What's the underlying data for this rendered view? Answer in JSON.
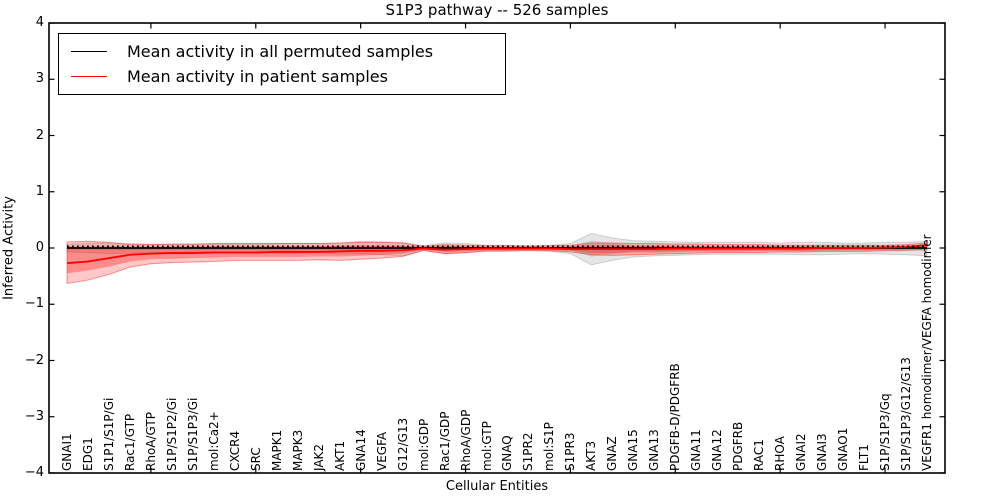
{
  "title": "S1P3 pathway -- 526 samples",
  "xlabel": "Cellular Entities",
  "ylabel": "Inferred Activity",
  "legend": [
    {
      "label": "Mean activity in all permuted samples",
      "color": "#000000"
    },
    {
      "label": "Mean activity in patient samples",
      "color": "#ff0000"
    }
  ],
  "colors": {
    "patient_line": "#ff0000",
    "permuted_line": "#000000",
    "patient_band_outer": "rgba(255,0,0,0.22)",
    "patient_band_inner": "rgba(255,0,0,0.30)",
    "permuted_band_outer": "rgba(110,110,110,0.18)",
    "permuted_band_inner": "rgba(110,110,110,0.22)"
  },
  "chart_data": {
    "type": "line",
    "title": "S1P3 pathway -- 526 samples",
    "xlabel": "Cellular Entities",
    "ylabel": "Inferred Activity",
    "ylim": [
      -4,
      4
    ],
    "yticks": [
      "−4",
      "−3",
      "−2",
      "−1",
      "0",
      "1",
      "2",
      "3",
      "4"
    ],
    "ytick_values": [
      -4,
      -3,
      -2,
      -1,
      0,
      1,
      2,
      3,
      4
    ],
    "xtick_indices": [
      4,
      9,
      14,
      19,
      24,
      29,
      34,
      39
    ],
    "grid": false,
    "legend_position": "upper left",
    "categories": [
      "GNAI1",
      "EDG1",
      "S1P1/S1P/Gi",
      "Rac1/GTP",
      "RhoA/GTP",
      "S1P/S1P2/Gi",
      "S1P/S1P3/Gi",
      "mol:Ca2+",
      "CXCR4",
      "SRC",
      "MAPK1",
      "MAPK3",
      "JAK2",
      "AKT1",
      "GNA14",
      "VEGFA",
      "G12/G13",
      "mol:GDP",
      "Rac1/GDP",
      "RhoA/GDP",
      "mol:GTP",
      "GNAQ",
      "S1PR2",
      "mol:S1P",
      "S1PR3",
      "AKT3",
      "GNAZ",
      "GNA15",
      "GNA13",
      "PDGFB-D/PDGFRB",
      "GNA11",
      "GNA12",
      "PDGFRB",
      "RAC1",
      "RHOA",
      "GNAI2",
      "GNAI3",
      "GNAO1",
      "FLT1",
      "S1P/S1P3/Gq",
      "S1P/S1P3/G12/G13",
      "VEGFR1 homodimer/VEGFA homodimer"
    ],
    "series": [
      {
        "name": "Mean activity in all permuted samples",
        "values": [
          0,
          0,
          0,
          0,
          0,
          0,
          0,
          0,
          0,
          0,
          0,
          0,
          0,
          0,
          0,
          0,
          0,
          0,
          0,
          0,
          0,
          0,
          0,
          0,
          0,
          0,
          0,
          0,
          0,
          0,
          0,
          0,
          0,
          0,
          0,
          0,
          0,
          0,
          0,
          0,
          0,
          0
        ]
      },
      {
        "name": "Mean activity in patient samples",
        "values": [
          -0.27,
          -0.24,
          -0.18,
          -0.12,
          -0.1,
          -0.09,
          -0.09,
          -0.08,
          -0.08,
          -0.08,
          -0.07,
          -0.07,
          -0.07,
          -0.06,
          -0.05,
          -0.05,
          -0.04,
          -0.01,
          -0.03,
          -0.02,
          -0.01,
          -0.01,
          -0.01,
          -0.01,
          -0.02,
          -0.02,
          -0.02,
          -0.02,
          -0.02,
          -0.01,
          -0.01,
          -0.01,
          -0.01,
          -0.01,
          -0.01,
          -0.01,
          0.0,
          0.0,
          0.0,
          0.01,
          0.02,
          0.05
        ]
      }
    ],
    "bands": [
      {
        "name": "permuted-band-outer",
        "upper": [
          0.07,
          0.08,
          0.09,
          0.08,
          0.07,
          0.07,
          0.07,
          0.07,
          0.07,
          0.07,
          0.08,
          0.08,
          0.08,
          0.09,
          0.12,
          0.11,
          0.1,
          0.04,
          0.09,
          0.08,
          0.05,
          0.05,
          0.04,
          0.05,
          0.08,
          0.26,
          0.18,
          0.13,
          0.12,
          0.11,
          0.1,
          0.1,
          0.1,
          0.1,
          0.09,
          0.1,
          0.1,
          0.09,
          0.09,
          0.1,
          0.1,
          0.12
        ],
        "lower": [
          -0.07,
          -0.08,
          -0.1,
          -0.09,
          -0.08,
          -0.08,
          -0.07,
          -0.07,
          -0.08,
          -0.08,
          -0.09,
          -0.09,
          -0.08,
          -0.1,
          -0.1,
          -0.12,
          -0.14,
          -0.05,
          -0.1,
          -0.09,
          -0.06,
          -0.06,
          -0.05,
          -0.06,
          -0.1,
          -0.3,
          -0.22,
          -0.16,
          -0.14,
          -0.13,
          -0.12,
          -0.11,
          -0.11,
          -0.11,
          -0.11,
          -0.12,
          -0.12,
          -0.11,
          -0.1,
          -0.11,
          -0.12,
          -0.14
        ]
      },
      {
        "name": "permuted-band-inner",
        "upper": [
          0.03,
          0.03,
          0.04,
          0.03,
          0.03,
          0.03,
          0.03,
          0.03,
          0.03,
          0.03,
          0.03,
          0.03,
          0.03,
          0.04,
          0.05,
          0.04,
          0.04,
          0.02,
          0.04,
          0.03,
          0.02,
          0.02,
          0.02,
          0.02,
          0.03,
          0.13,
          0.09,
          0.05,
          0.05,
          0.04,
          0.04,
          0.04,
          0.04,
          0.04,
          0.04,
          0.04,
          0.04,
          0.04,
          0.04,
          0.04,
          0.04,
          0.05
        ],
        "lower": [
          -0.03,
          -0.03,
          -0.04,
          -0.04,
          -0.03,
          -0.03,
          -0.03,
          -0.03,
          -0.03,
          -0.03,
          -0.04,
          -0.04,
          -0.03,
          -0.04,
          -0.04,
          -0.05,
          -0.06,
          -0.02,
          -0.04,
          -0.04,
          -0.02,
          -0.02,
          -0.02,
          -0.02,
          -0.04,
          -0.15,
          -0.11,
          -0.06,
          -0.06,
          -0.05,
          -0.05,
          -0.04,
          -0.04,
          -0.04,
          -0.04,
          -0.05,
          -0.05,
          -0.04,
          -0.04,
          -0.04,
          -0.05,
          -0.06
        ]
      },
      {
        "name": "patient-band-outer",
        "upper": [
          0.11,
          0.12,
          0.1,
          0.06,
          0.06,
          0.07,
          0.07,
          0.08,
          0.08,
          0.08,
          0.08,
          0.08,
          0.08,
          0.09,
          0.1,
          0.1,
          0.09,
          0.03,
          0.06,
          0.05,
          0.04,
          0.04,
          0.03,
          0.04,
          0.05,
          0.09,
          0.09,
          0.08,
          0.08,
          0.07,
          0.07,
          0.06,
          0.06,
          0.06,
          0.05,
          0.05,
          0.05,
          0.05,
          0.05,
          0.05,
          0.06,
          0.09
        ],
        "lower": [
          -0.63,
          -0.57,
          -0.47,
          -0.34,
          -0.28,
          -0.26,
          -0.25,
          -0.24,
          -0.22,
          -0.22,
          -0.22,
          -0.22,
          -0.21,
          -0.22,
          -0.2,
          -0.18,
          -0.15,
          -0.04,
          -0.1,
          -0.08,
          -0.05,
          -0.05,
          -0.04,
          -0.05,
          -0.07,
          -0.12,
          -0.13,
          -0.12,
          -0.11,
          -0.1,
          -0.09,
          -0.08,
          -0.08,
          -0.08,
          -0.07,
          -0.07,
          -0.06,
          -0.06,
          -0.06,
          -0.05,
          -0.04,
          -0.02
        ]
      },
      {
        "name": "patient-band-inner",
        "upper": [
          0.02,
          0.02,
          0.01,
          0.01,
          0.01,
          0.02,
          0.02,
          0.03,
          0.03,
          0.03,
          0.03,
          0.03,
          0.03,
          0.04,
          0.04,
          0.04,
          0.04,
          0.02,
          0.03,
          0.03,
          0.02,
          0.02,
          0.02,
          0.02,
          0.03,
          0.05,
          0.05,
          0.04,
          0.04,
          0.04,
          0.03,
          0.03,
          0.03,
          0.03,
          0.03,
          0.03,
          0.03,
          0.03,
          0.03,
          0.03,
          0.04,
          0.07
        ],
        "lower": [
          -0.45,
          -0.4,
          -0.33,
          -0.24,
          -0.2,
          -0.19,
          -0.18,
          -0.17,
          -0.16,
          -0.16,
          -0.16,
          -0.16,
          -0.15,
          -0.15,
          -0.14,
          -0.12,
          -0.1,
          -0.03,
          -0.07,
          -0.06,
          -0.04,
          -0.04,
          -0.03,
          -0.04,
          -0.05,
          -0.09,
          -0.09,
          -0.08,
          -0.08,
          -0.07,
          -0.06,
          -0.06,
          -0.06,
          -0.05,
          -0.05,
          -0.05,
          -0.04,
          -0.04,
          -0.04,
          -0.03,
          -0.02,
          0.0
        ]
      }
    ]
  }
}
